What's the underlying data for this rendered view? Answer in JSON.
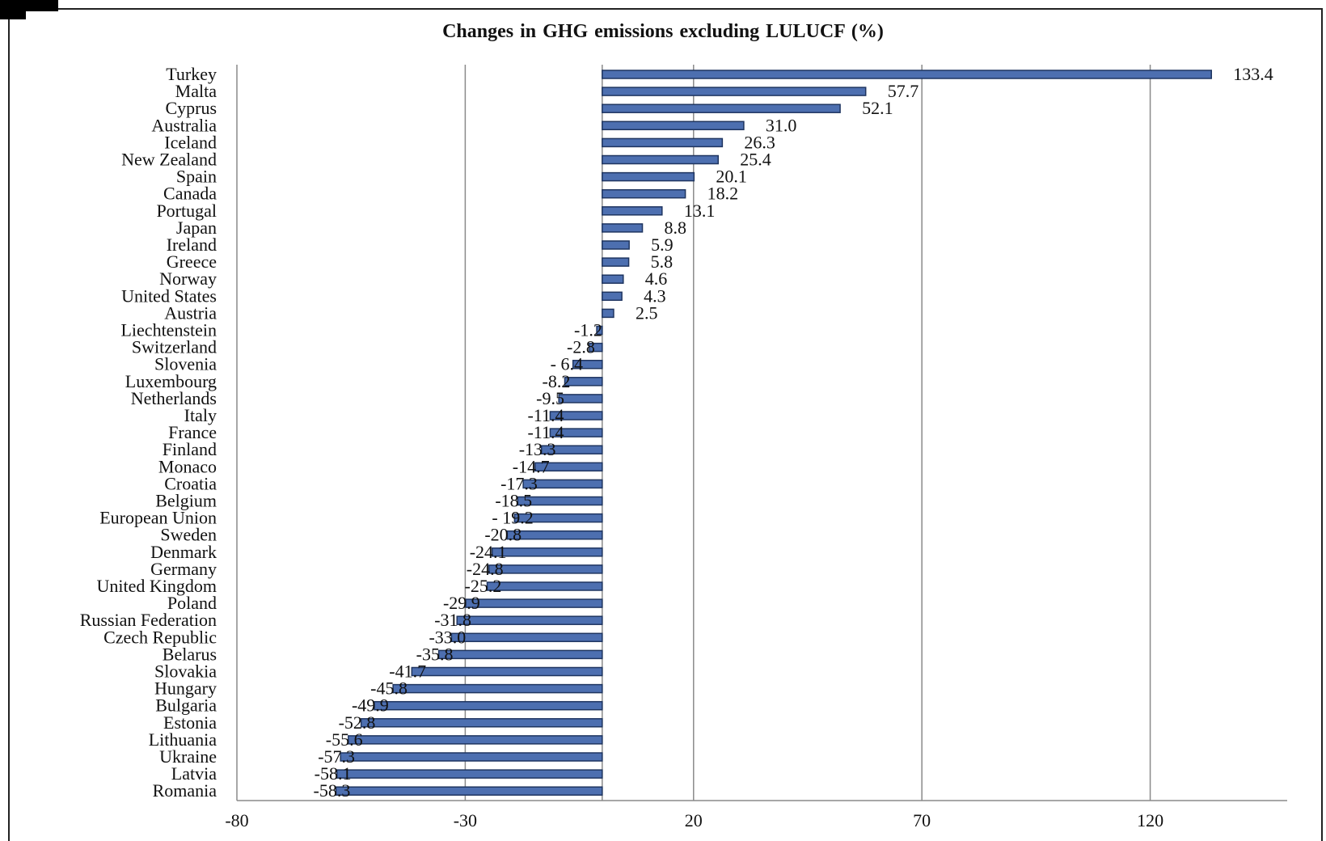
{
  "chart_data": {
    "type": "bar",
    "orientation": "horizontal",
    "title": "Changes in GHG  emissions excluding LULUCF  (%)",
    "xlabel": "",
    "ylabel": "",
    "xlim": [
      -80,
      150
    ],
    "xticks": [
      -80,
      -30,
      20,
      70,
      120
    ],
    "grid": "vertical",
    "bar_color": "#4d6fb0",
    "categories": [
      "Turkey",
      "Malta",
      "Cyprus",
      "Australia",
      "Iceland",
      "New Zealand",
      "Spain",
      "Canada",
      "Portugal",
      "Japan",
      "Ireland",
      "Greece",
      "Norway",
      "United States",
      "Austria",
      "Liechtenstein",
      "Switzerland",
      "Slovenia",
      "Luxembourg",
      "Netherlands",
      "Italy",
      "France",
      "Finland",
      "Monaco",
      "Croatia",
      "Belgium",
      "European Union",
      "Sweden",
      "Denmark",
      "Germany",
      "United Kingdom",
      "Poland",
      "Russian Federation",
      "Czech Republic",
      "Belarus",
      "Slovakia",
      "Hungary",
      "Bulgaria",
      "Estonia",
      "Lithuania",
      "Ukraine",
      "Latvia",
      "Romania"
    ],
    "values": [
      133.4,
      57.7,
      52.1,
      31.0,
      26.3,
      25.4,
      20.1,
      18.2,
      13.1,
      8.8,
      5.9,
      5.8,
      4.6,
      4.3,
      2.5,
      -1.2,
      -2.8,
      -6.4,
      -8.2,
      -9.5,
      -11.4,
      -11.4,
      -13.3,
      -14.7,
      -17.3,
      -18.5,
      -19.2,
      -20.8,
      -24.1,
      -24.8,
      -25.2,
      -29.9,
      -31.8,
      -33.0,
      -35.8,
      -41.7,
      -45.8,
      -49.9,
      -52.8,
      -55.6,
      -57.3,
      -58.1,
      -58.3
    ],
    "value_labels": [
      "133.4",
      "57.7",
      "52.1",
      "31.0",
      "26.3",
      "25.4",
      "20.1",
      "18.2",
      "13.1",
      "8.8",
      "5.9",
      "5.8",
      "4.6",
      "4.3",
      "2.5",
      "-1.2",
      "-2.8",
      "- 6.4",
      "-8.2",
      "-9.5",
      "-11.4",
      "-11.4",
      "-13.3",
      "-14.7",
      "-17.3",
      "-18.5",
      "- 19.2",
      "-20.8",
      "-24.1",
      "-24.8",
      "-25.2",
      "-29.9",
      "-31.8",
      "-33.0",
      "-35.8",
      "-41.7",
      "-45.8",
      "-49.9",
      "-52.8",
      "-55.6",
      "-57.3",
      "-58.1",
      "-58.3"
    ]
  }
}
